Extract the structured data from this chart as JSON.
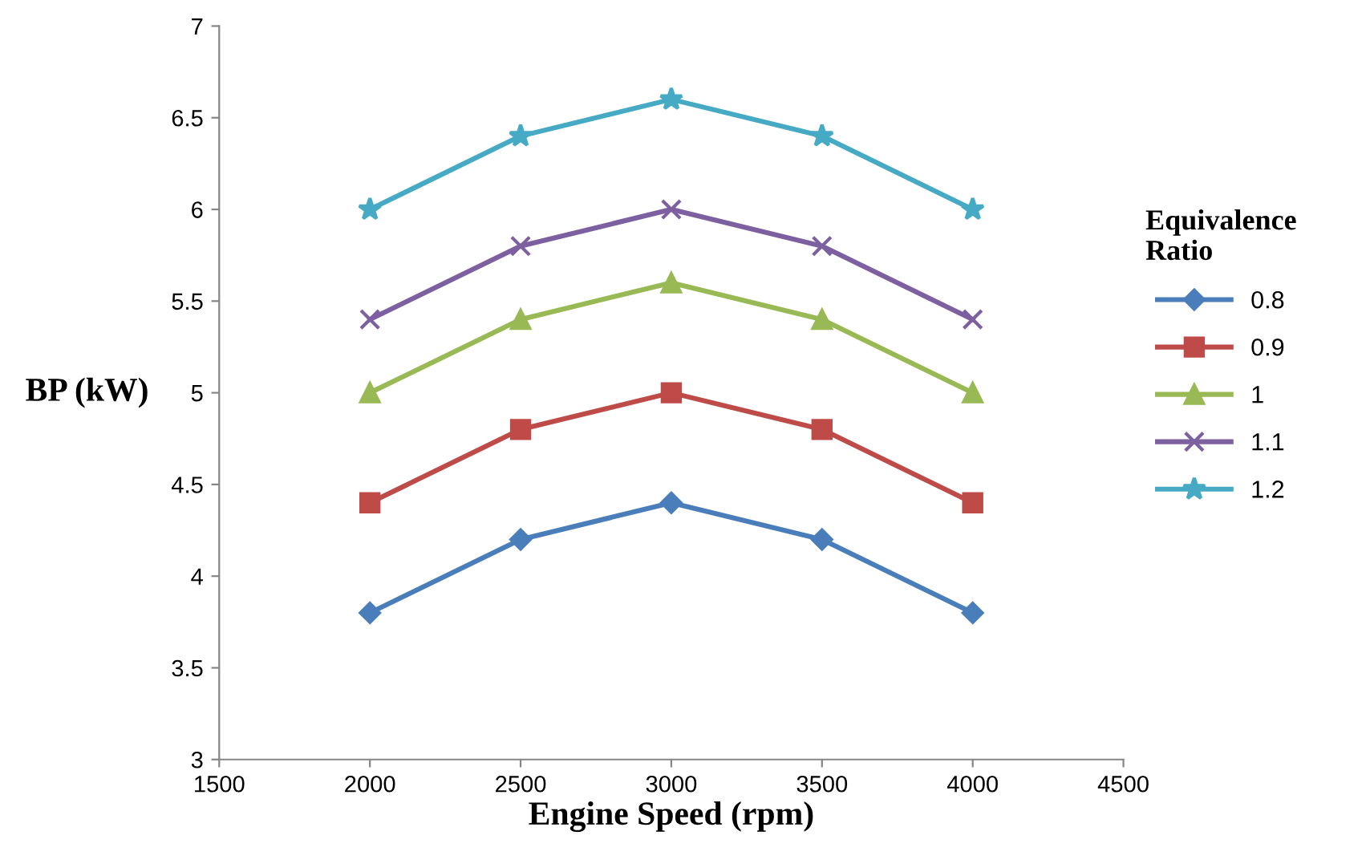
{
  "chart_data": {
    "type": "line",
    "xlabel": "Engine Speed (rpm)",
    "ylabel": "BP (kW)",
    "legend_title": "Equivalence Ratio",
    "legend": "right",
    "grid": false,
    "x": [
      2000,
      2500,
      3000,
      3500,
      4000
    ],
    "xlim": [
      1500,
      4500
    ],
    "xticks": [
      1500,
      2000,
      2500,
      3000,
      3500,
      4000,
      4500
    ],
    "ylim": [
      3,
      7
    ],
    "yticks": [
      3,
      3.5,
      4,
      4.5,
      5,
      5.5,
      6,
      6.5,
      7
    ],
    "series": [
      {
        "name": "0.8",
        "color": "#4a7ebb",
        "marker": "diamond",
        "values": [
          3.8,
          4.2,
          4.4,
          4.2,
          3.8
        ]
      },
      {
        "name": "0.9",
        "color": "#be4b48",
        "marker": "square",
        "values": [
          4.4,
          4.8,
          5.0,
          4.8,
          4.4
        ]
      },
      {
        "name": "1",
        "color": "#98b954",
        "marker": "triangle",
        "values": [
          5.0,
          5.4,
          5.6,
          5.4,
          5.0
        ]
      },
      {
        "name": "1.1",
        "color": "#7d60a0",
        "marker": "cross",
        "values": [
          5.4,
          5.8,
          6.0,
          5.8,
          5.4
        ]
      },
      {
        "name": "1.2",
        "color": "#46aac5",
        "marker": "star",
        "values": [
          6.0,
          6.4,
          6.6,
          6.4,
          6.0
        ]
      }
    ]
  }
}
